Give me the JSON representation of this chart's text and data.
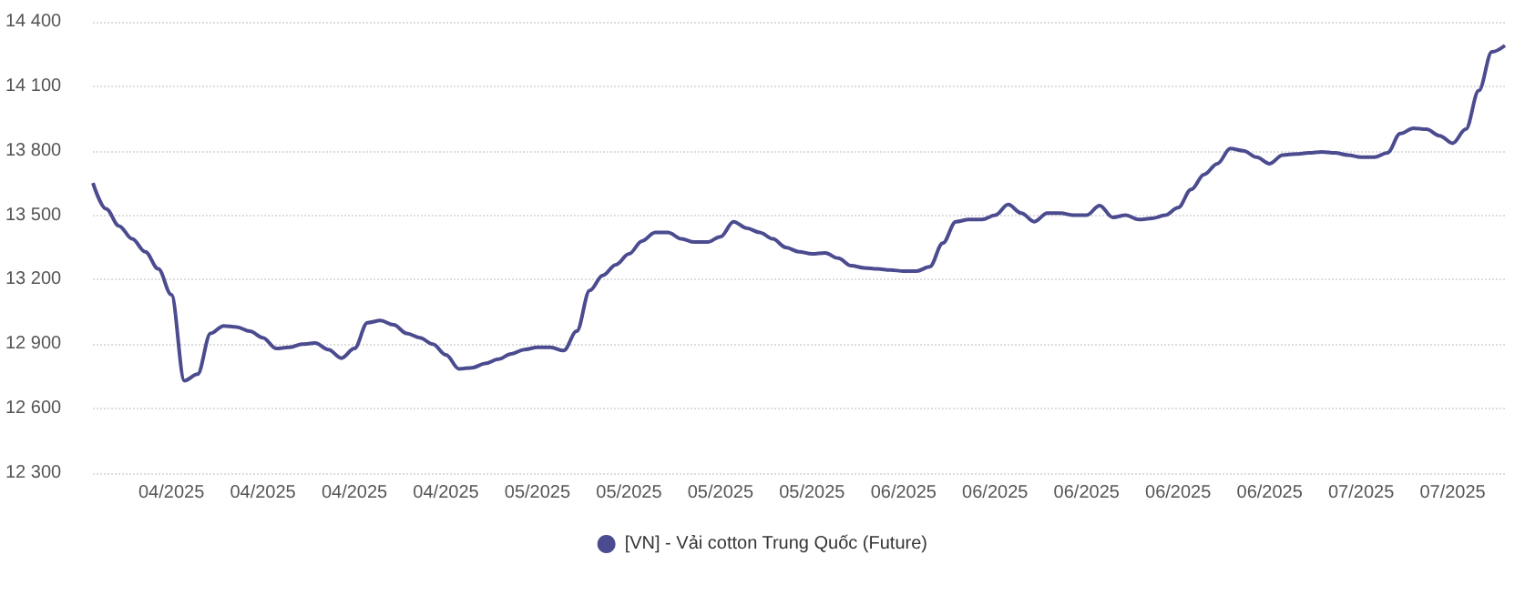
{
  "chart_data": {
    "type": "line",
    "categories": [
      null,
      null,
      null,
      null,
      null,
      null,
      "04/2025",
      null,
      null,
      null,
      null,
      null,
      null,
      "04/2025",
      null,
      null,
      null,
      null,
      null,
      null,
      "04/2025",
      null,
      null,
      null,
      null,
      null,
      null,
      "04/2025",
      null,
      null,
      null,
      null,
      null,
      null,
      "05/2025",
      null,
      null,
      null,
      null,
      null,
      null,
      "05/2025",
      null,
      null,
      null,
      null,
      null,
      null,
      "05/2025",
      null,
      null,
      null,
      null,
      null,
      null,
      "05/2025",
      null,
      null,
      null,
      null,
      null,
      null,
      "06/2025",
      null,
      null,
      null,
      null,
      null,
      null,
      "06/2025",
      null,
      null,
      null,
      null,
      null,
      null,
      "06/2025",
      null,
      null,
      null,
      null,
      null,
      null,
      "06/2025",
      null,
      null,
      null,
      null,
      null,
      null,
      "06/2025",
      null,
      null,
      null,
      null,
      null,
      null,
      "07/2025",
      null,
      null,
      null,
      null,
      null,
      null,
      "07/2025",
      null,
      null,
      null,
      null
    ],
    "series": [
      {
        "name": "[VN] - Vải cotton Trung Quốc (Future)",
        "color": "#4b4b8f",
        "values": [
          13650,
          13530,
          13450,
          13390,
          13330,
          13250,
          13130,
          12730,
          12760,
          12950,
          12985,
          12980,
          12960,
          12930,
          12880,
          12885,
          12900,
          12905,
          12875,
          12835,
          12880,
          13000,
          13010,
          12990,
          12950,
          12930,
          12900,
          12850,
          12785,
          12790,
          12810,
          12830,
          12855,
          12875,
          12885,
          12885,
          12870,
          12960,
          13150,
          13220,
          13270,
          13320,
          13380,
          13420,
          13420,
          13390,
          13375,
          13375,
          13400,
          13470,
          13440,
          13420,
          13390,
          13350,
          13330,
          13320,
          13325,
          13300,
          13265,
          13255,
          13250,
          13245,
          13240,
          13240,
          13260,
          13370,
          13470,
          13480,
          13480,
          13500,
          13550,
          13510,
          13470,
          13510,
          13510,
          13500,
          13500,
          13545,
          13490,
          13500,
          13480,
          13485,
          13500,
          13535,
          13620,
          13690,
          13740,
          13810,
          13800,
          13770,
          13740,
          13780,
          13785,
          13790,
          13795,
          13790,
          13780,
          13770,
          13770,
          13790,
          13880,
          13905,
          13900,
          13870,
          13835,
          13900,
          14080,
          14260,
          14290
        ]
      }
    ],
    "ylim": [
      12300,
      14400
    ],
    "yticks": [
      {
        "value": 12300,
        "label": "12 300"
      },
      {
        "value": 12600,
        "label": "12 600"
      },
      {
        "value": 12900,
        "label": "12 900"
      },
      {
        "value": 13200,
        "label": "13 200"
      },
      {
        "value": 13500,
        "label": "13 500"
      },
      {
        "value": 13800,
        "label": "13 800"
      },
      {
        "value": 14100,
        "label": "14 100"
      },
      {
        "value": 14400,
        "label": "14 400"
      }
    ],
    "grid": "y",
    "legend": "bottom",
    "marker": "none",
    "line_style": "solid"
  }
}
